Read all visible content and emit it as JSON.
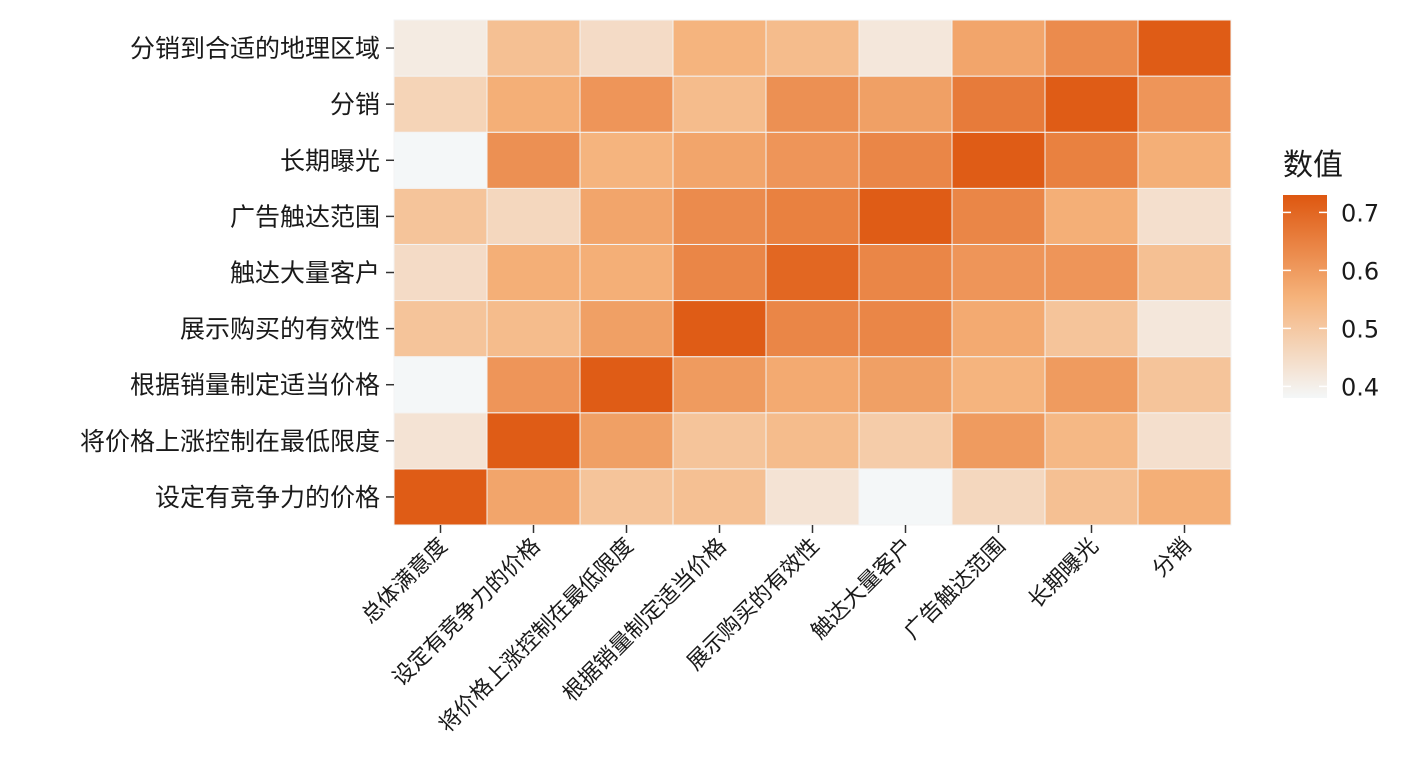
{
  "chart_data": {
    "type": "heatmap",
    "title": "",
    "xlabel": "",
    "ylabel": "",
    "x_categories": [
      "总体满意度",
      "设定有竞争力的价格",
      "将价格上涨控制在最低限度",
      "根据销量制定适当价格",
      "展示购买的有效性",
      "触达大量客户",
      "广告触达范围",
      "长期曝光",
      "分销"
    ],
    "y_categories": [
      "设定有竞争力的价格",
      "将价格上涨控制在最低限度",
      "根据销量制定适当价格",
      "展示购买的有效性",
      "触达大量客户",
      "广告触达范围",
      "长期曝光",
      "分销",
      "分销到合适的地理区域"
    ],
    "values": [
      [
        0.72,
        0.58,
        0.51,
        0.52,
        0.43,
        0.38,
        0.46,
        0.52,
        0.56
      ],
      [
        0.43,
        0.72,
        0.59,
        0.51,
        0.53,
        0.49,
        0.6,
        0.54,
        0.44
      ],
      [
        0.38,
        0.61,
        0.72,
        0.6,
        0.57,
        0.59,
        0.55,
        0.6,
        0.51
      ],
      [
        0.51,
        0.53,
        0.59,
        0.72,
        0.64,
        0.64,
        0.57,
        0.51,
        0.42
      ],
      [
        0.45,
        0.56,
        0.56,
        0.64,
        0.7,
        0.64,
        0.61,
        0.61,
        0.52
      ],
      [
        0.51,
        0.46,
        0.58,
        0.63,
        0.65,
        0.72,
        0.64,
        0.56,
        0.44
      ],
      [
        0.38,
        0.62,
        0.55,
        0.58,
        0.61,
        0.64,
        0.72,
        0.65,
        0.56
      ],
      [
        0.47,
        0.56,
        0.61,
        0.53,
        0.62,
        0.59,
        0.66,
        0.72,
        0.61
      ],
      [
        0.41,
        0.52,
        0.45,
        0.55,
        0.53,
        0.42,
        0.58,
        0.63,
        0.72
      ]
    ],
    "legend": {
      "title": "数值",
      "ticks": [
        0.4,
        0.5,
        0.6,
        0.7
      ],
      "min": 0.38,
      "max": 0.73,
      "position": "right"
    },
    "colors": {
      "low": "#f4f7f8",
      "mid": "#f5b27a",
      "high": "#de5710",
      "cell_border": "#f3f3f3",
      "axis_tick": "#333333"
    },
    "grid": false
  }
}
